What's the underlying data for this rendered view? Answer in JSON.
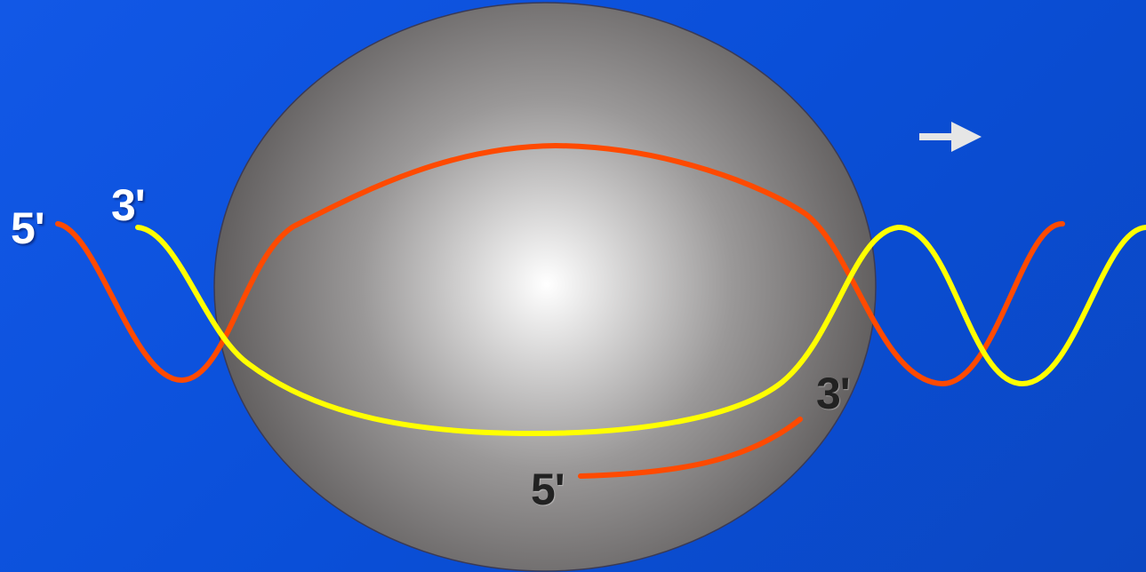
{
  "labels": {
    "left_red_end": "5'",
    "left_yellow_end": "3'",
    "short_strand_end": "3'",
    "short_strand_start": "5'"
  },
  "icons": {
    "direction": "arrow-right-icon"
  },
  "colors": {
    "background": "#0a4fd8",
    "red_strand": "#ff4a00",
    "yellow_strand": "#ffff00",
    "sphere": "#8c8c8c",
    "arrow": "#e6e6e6"
  }
}
